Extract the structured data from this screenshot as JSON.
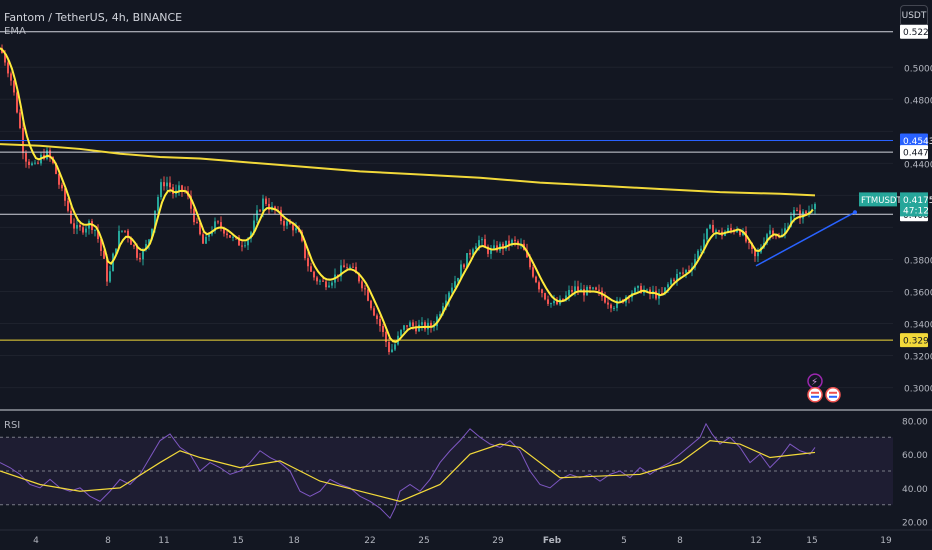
{
  "header": {
    "title": "Fantom / TetherUS, 4h, BINANCE",
    "indicator": "EMA",
    "currency": "USDT"
  },
  "rsi_panel": {
    "label": "RSI"
  },
  "colors": {
    "up": "#26a69a",
    "down": "#ef5350",
    "ema_fast": "#ffeb3b",
    "ema_slow": "#f2d93a",
    "trend": "#2962ff",
    "rsi_line": "#7e57c2",
    "rsi_ma": "#f2d93a",
    "blue_level": "#2962ff",
    "yellow_level": "#f2d93a"
  },
  "chart_data": [
    {
      "type": "candlestick",
      "symbol": "FTMUSDT",
      "price": "0.4175",
      "countdown": "47:12",
      "ylim": [
        0.286,
        0.532
      ],
      "y_ticks": [
        "0.5000",
        "0.4800",
        "0.4400",
        "0.3800",
        "0.3600",
        "0.3400",
        "0.3200",
        "0.3000"
      ],
      "x_ticks": [
        "4",
        "8",
        "11",
        "15",
        "18",
        "22",
        "25",
        "29",
        "Feb",
        "5",
        "8",
        "12",
        "15",
        "19"
      ],
      "horizontal_levels": [
        {
          "value": 0.5222,
          "label": "0.5222",
          "color": "white"
        },
        {
          "value": 0.4543,
          "label": "0.4543",
          "color": "blue"
        },
        {
          "value": 0.447,
          "label": "0.4470",
          "color": "white"
        },
        {
          "value": 0.4082,
          "label": "0.4082",
          "color": "white"
        },
        {
          "value": 0.3296,
          "label": "0.3296",
          "color": "yellow"
        }
      ],
      "close_path": [
        [
          0,
          0.512
        ],
        [
          6,
          0.503
        ],
        [
          12,
          0.49
        ],
        [
          18,
          0.47
        ],
        [
          24,
          0.445
        ],
        [
          30,
          0.44
        ],
        [
          36,
          0.437
        ],
        [
          42,
          0.445
        ],
        [
          48,
          0.446
        ],
        [
          54,
          0.438
        ],
        [
          60,
          0.425
        ],
        [
          66,
          0.415
        ],
        [
          72,
          0.402
        ],
        [
          78,
          0.398
        ],
        [
          84,
          0.4
        ],
        [
          90,
          0.403
        ],
        [
          96,
          0.398
        ],
        [
          100,
          0.388
        ],
        [
          104,
          0.378
        ],
        [
          108,
          0.365
        ],
        [
          114,
          0.385
        ],
        [
          120,
          0.398
        ],
        [
          126,
          0.398
        ],
        [
          132,
          0.39
        ],
        [
          138,
          0.382
        ],
        [
          144,
          0.385
        ],
        [
          150,
          0.395
        ],
        [
          156,
          0.415
        ],
        [
          162,
          0.428
        ],
        [
          168,
          0.428
        ],
        [
          174,
          0.42
        ],
        [
          180,
          0.424
        ],
        [
          186,
          0.422
        ],
        [
          192,
          0.41
        ],
        [
          198,
          0.398
        ],
        [
          204,
          0.388
        ],
        [
          210,
          0.398
        ],
        [
          216,
          0.402
        ],
        [
          222,
          0.4
        ],
        [
          228,
          0.396
        ],
        [
          234,
          0.392
        ],
        [
          240,
          0.39
        ],
        [
          246,
          0.392
        ],
        [
          252,
          0.398
        ],
        [
          258,
          0.41
        ],
        [
          264,
          0.418
        ],
        [
          270,
          0.412
        ],
        [
          276,
          0.41
        ],
        [
          282,
          0.404
        ],
        [
          288,
          0.402
        ],
        [
          294,
          0.4
        ],
        [
          300,
          0.394
        ],
        [
          306,
          0.38
        ],
        [
          312,
          0.37
        ],
        [
          318,
          0.367
        ],
        [
          324,
          0.365
        ],
        [
          330,
          0.367
        ],
        [
          336,
          0.37
        ],
        [
          342,
          0.374
        ],
        [
          348,
          0.376
        ],
        [
          354,
          0.372
        ],
        [
          360,
          0.367
        ],
        [
          366,
          0.36
        ],
        [
          372,
          0.35
        ],
        [
          378,
          0.342
        ],
        [
          384,
          0.332
        ],
        [
          390,
          0.322
        ],
        [
          396,
          0.328
        ],
        [
          402,
          0.336
        ],
        [
          408,
          0.34
        ],
        [
          414,
          0.338
        ],
        [
          420,
          0.338
        ],
        [
          426,
          0.338
        ],
        [
          432,
          0.338
        ],
        [
          438,
          0.345
        ],
        [
          444,
          0.355
        ],
        [
          450,
          0.362
        ],
        [
          456,
          0.368
        ],
        [
          462,
          0.376
        ],
        [
          468,
          0.382
        ],
        [
          474,
          0.39
        ],
        [
          480,
          0.392
        ],
        [
          486,
          0.386
        ],
        [
          492,
          0.385
        ],
        [
          498,
          0.388
        ],
        [
          504,
          0.388
        ],
        [
          510,
          0.391
        ],
        [
          516,
          0.39
        ],
        [
          522,
          0.388
        ],
        [
          528,
          0.378
        ],
        [
          534,
          0.37
        ],
        [
          540,
          0.362
        ],
        [
          546,
          0.356
        ],
        [
          552,
          0.352
        ],
        [
          558,
          0.352
        ],
        [
          564,
          0.355
        ],
        [
          570,
          0.36
        ],
        [
          576,
          0.362
        ],
        [
          582,
          0.36
        ],
        [
          588,
          0.36
        ],
        [
          594,
          0.36
        ],
        [
          600,
          0.358
        ],
        [
          606,
          0.355
        ],
        [
          612,
          0.352
        ],
        [
          618,
          0.352
        ],
        [
          624,
          0.356
        ],
        [
          630,
          0.36
        ],
        [
          636,
          0.36
        ],
        [
          642,
          0.362
        ],
        [
          648,
          0.358
        ],
        [
          654,
          0.359
        ],
        [
          660,
          0.356
        ],
        [
          666,
          0.362
        ],
        [
          672,
          0.368
        ],
        [
          678,
          0.37
        ],
        [
          684,
          0.372
        ],
        [
          690,
          0.375
        ],
        [
          696,
          0.382
        ],
        [
          702,
          0.39
        ],
        [
          708,
          0.398
        ],
        [
          714,
          0.4
        ],
        [
          720,
          0.395
        ],
        [
          726,
          0.398
        ],
        [
          732,
          0.398
        ],
        [
          738,
          0.4
        ],
        [
          744,
          0.394
        ],
        [
          750,
          0.386
        ],
        [
          756,
          0.38
        ],
        [
          762,
          0.39
        ],
        [
          768,
          0.398
        ],
        [
          774,
          0.398
        ],
        [
          780,
          0.392
        ],
        [
          786,
          0.4
        ],
        [
          792,
          0.41
        ],
        [
          798,
          0.408
        ],
        [
          804,
          0.408
        ],
        [
          810,
          0.411
        ],
        [
          815,
          0.4175
        ]
      ],
      "ema_slow_path": [
        [
          0,
          0.452
        ],
        [
          40,
          0.451
        ],
        [
          80,
          0.449
        ],
        [
          120,
          0.446
        ],
        [
          160,
          0.444
        ],
        [
          200,
          0.443
        ],
        [
          240,
          0.441
        ],
        [
          300,
          0.438
        ],
        [
          360,
          0.435
        ],
        [
          420,
          0.433
        ],
        [
          480,
          0.431
        ],
        [
          540,
          0.428
        ],
        [
          600,
          0.426
        ],
        [
          660,
          0.424
        ],
        [
          720,
          0.422
        ],
        [
          780,
          0.421
        ],
        [
          815,
          0.42
        ]
      ],
      "trendline": [
        [
          756,
          0.376
        ],
        [
          855,
          0.4095
        ]
      ]
    },
    {
      "type": "line",
      "name": "RSI",
      "ylim": [
        15,
        85
      ],
      "y_ticks": [
        "80.00",
        "60.00",
        "40.00",
        "20.00"
      ],
      "bands": [
        70,
        50,
        30
      ],
      "rsi_path": [
        [
          0,
          55
        ],
        [
          10,
          52
        ],
        [
          20,
          48
        ],
        [
          30,
          42
        ],
        [
          40,
          40
        ],
        [
          50,
          45
        ],
        [
          60,
          40
        ],
        [
          70,
          38
        ],
        [
          80,
          40
        ],
        [
          90,
          35
        ],
        [
          100,
          32
        ],
        [
          110,
          38
        ],
        [
          120,
          45
        ],
        [
          130,
          42
        ],
        [
          140,
          48
        ],
        [
          150,
          58
        ],
        [
          160,
          68
        ],
        [
          170,
          72
        ],
        [
          180,
          64
        ],
        [
          190,
          60
        ],
        [
          200,
          50
        ],
        [
          210,
          55
        ],
        [
          220,
          52
        ],
        [
          230,
          48
        ],
        [
          240,
          50
        ],
        [
          250,
          55
        ],
        [
          260,
          62
        ],
        [
          270,
          58
        ],
        [
          280,
          55
        ],
        [
          290,
          50
        ],
        [
          300,
          38
        ],
        [
          310,
          35
        ],
        [
          320,
          38
        ],
        [
          330,
          45
        ],
        [
          340,
          42
        ],
        [
          350,
          40
        ],
        [
          360,
          35
        ],
        [
          370,
          32
        ],
        [
          380,
          28
        ],
        [
          390,
          22
        ],
        [
          395,
          28
        ],
        [
          400,
          38
        ],
        [
          410,
          42
        ],
        [
          420,
          38
        ],
        [
          430,
          45
        ],
        [
          440,
          55
        ],
        [
          450,
          62
        ],
        [
          460,
          68
        ],
        [
          470,
          75
        ],
        [
          480,
          70
        ],
        [
          490,
          66
        ],
        [
          500,
          64
        ],
        [
          510,
          68
        ],
        [
          520,
          62
        ],
        [
          530,
          50
        ],
        [
          540,
          42
        ],
        [
          550,
          40
        ],
        [
          560,
          45
        ],
        [
          570,
          48
        ],
        [
          580,
          46
        ],
        [
          590,
          48
        ],
        [
          600,
          44
        ],
        [
          610,
          48
        ],
        [
          620,
          50
        ],
        [
          630,
          46
        ],
        [
          640,
          52
        ],
        [
          650,
          48
        ],
        [
          660,
          52
        ],
        [
          670,
          55
        ],
        [
          680,
          60
        ],
        [
          690,
          65
        ],
        [
          700,
          70
        ],
        [
          706,
          78
        ],
        [
          712,
          72
        ],
        [
          720,
          66
        ],
        [
          730,
          70
        ],
        [
          740,
          64
        ],
        [
          750,
          55
        ],
        [
          760,
          60
        ],
        [
          770,
          52
        ],
        [
          780,
          58
        ],
        [
          790,
          66
        ],
        [
          800,
          62
        ],
        [
          810,
          60
        ],
        [
          815,
          64
        ]
      ],
      "rsi_ma_path": [
        [
          0,
          50
        ],
        [
          40,
          42
        ],
        [
          80,
          38
        ],
        [
          120,
          40
        ],
        [
          160,
          55
        ],
        [
          180,
          62
        ],
        [
          200,
          58
        ],
        [
          240,
          52
        ],
        [
          280,
          56
        ],
        [
          320,
          44
        ],
        [
          360,
          38
        ],
        [
          400,
          32
        ],
        [
          440,
          42
        ],
        [
          470,
          60
        ],
        [
          500,
          66
        ],
        [
          520,
          64
        ],
        [
          560,
          46
        ],
        [
          600,
          47
        ],
        [
          640,
          48
        ],
        [
          680,
          55
        ],
        [
          710,
          68
        ],
        [
          740,
          66
        ],
        [
          770,
          58
        ],
        [
          800,
          60
        ],
        [
          815,
          61
        ]
      ]
    }
  ]
}
